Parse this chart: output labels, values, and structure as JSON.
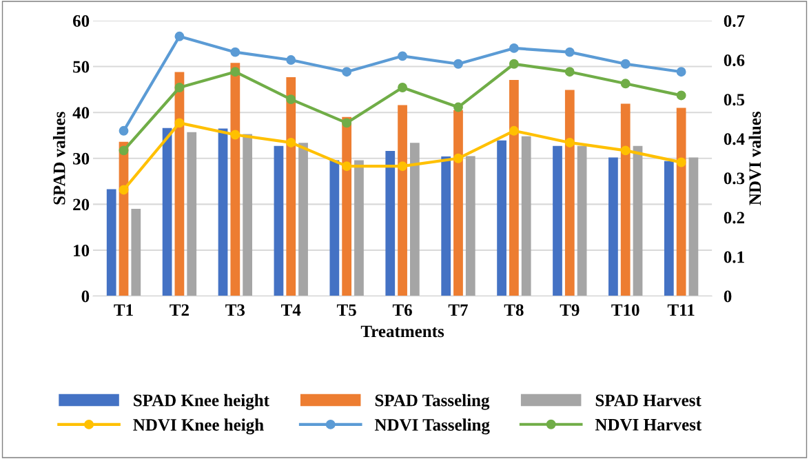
{
  "chart_data": {
    "type": "bar",
    "xlabel": "Treatments",
    "ylabel": "SPAD values",
    "y2label": "NDVI values",
    "categories": [
      "T1",
      "T2",
      "T3",
      "T4",
      "T5",
      "T6",
      "T7",
      "T8",
      "T9",
      "T10",
      "T11"
    ],
    "series": [
      {
        "name": "SPAD Knee height",
        "color": "#4472c4",
        "values": [
          23.3,
          36.6,
          36.5,
          32.7,
          29.6,
          31.6,
          30.4,
          33.9,
          32.7,
          30.2,
          29.4
        ]
      },
      {
        "name": "SPAD Tasseling",
        "color": "#ed7d31",
        "values": [
          33.6,
          48.8,
          50.8,
          47.7,
          39.0,
          41.6,
          40.5,
          47.1,
          44.9,
          41.9,
          41.0
        ]
      },
      {
        "name": "SPAD Harvest",
        "color": "#a5a5a5",
        "values": [
          19.0,
          35.7,
          35.3,
          33.4,
          29.6,
          33.4,
          30.5,
          34.8,
          32.7,
          32.7,
          30.2
        ]
      },
      {
        "name": "NDVI Knee heigh",
        "type": "line",
        "axis": "y2",
        "color": "#ffc000",
        "values": [
          0.27,
          0.44,
          0.41,
          0.39,
          0.33,
          0.33,
          0.35,
          0.42,
          0.39,
          0.37,
          0.34
        ]
      },
      {
        "name": "NDVI Tasseling",
        "type": "line",
        "axis": "y2",
        "color": "#5b9bd5",
        "values": [
          0.42,
          0.66,
          0.62,
          0.6,
          0.57,
          0.61,
          0.59,
          0.63,
          0.62,
          0.59,
          0.57
        ]
      },
      {
        "name": "NDVI Harvest",
        "type": "line",
        "axis": "y2",
        "color": "#70ad47",
        "values": [
          0.37,
          0.53,
          0.57,
          0.5,
          0.44,
          0.53,
          0.48,
          0.59,
          0.57,
          0.54,
          0.51
        ]
      }
    ],
    "ylim": [
      0,
      60
    ],
    "yticks": [
      0,
      10,
      20,
      30,
      40,
      50,
      60
    ],
    "y2lim": [
      0,
      0.7
    ],
    "y2ticks": [
      0,
      0.1,
      0.2,
      0.3,
      0.4,
      0.5,
      0.6,
      0.7
    ],
    "grid": "y",
    "legend": "bottom",
    "marker": "circle",
    "line_style": "solid"
  }
}
